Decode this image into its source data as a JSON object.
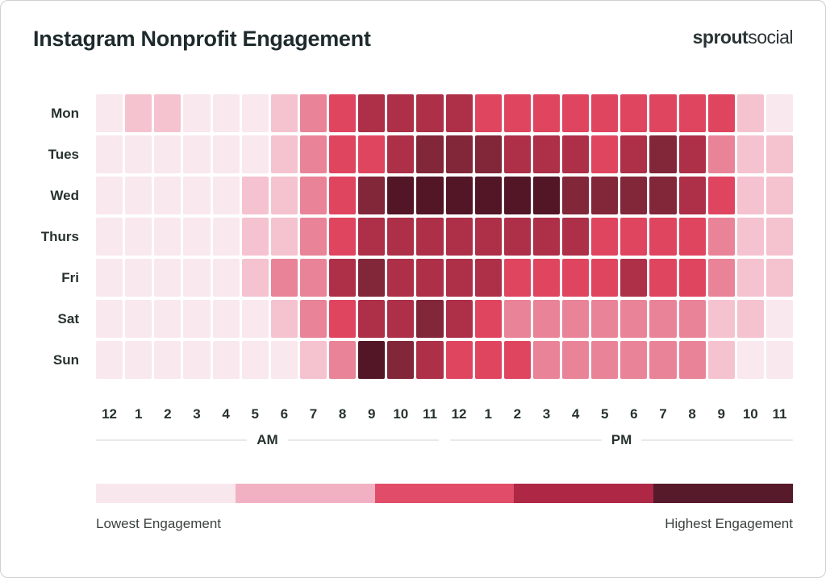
{
  "header": {
    "title": "Instagram Nonprofit Engagement",
    "logo": {
      "bold": "sprout",
      "light": "social"
    }
  },
  "axis": {
    "am_label": "AM",
    "pm_label": "PM"
  },
  "legend": {
    "lowest_label": "Lowest Engagement",
    "highest_label": "Highest Engagement",
    "colors": [
      "#f8e7ed",
      "#f2b1c2",
      "#e14d68",
      "#ae2745",
      "#571a2b"
    ]
  },
  "chart_data": {
    "type": "heatmap",
    "title": "Instagram Nonprofit Engagement",
    "x_labels": [
      "12",
      "1",
      "2",
      "3",
      "4",
      "5",
      "6",
      "7",
      "8",
      "9",
      "10",
      "11",
      "12",
      "1",
      "2",
      "3",
      "4",
      "5",
      "6",
      "7",
      "8",
      "9",
      "10",
      "11"
    ],
    "x_groups": [
      "AM",
      "PM"
    ],
    "y_labels": [
      "Mon",
      "Tues",
      "Wed",
      "Thurs",
      "Fri",
      "Sat",
      "Sun"
    ],
    "value_scale": "engagement level, 1 = lowest to 7 = highest",
    "palette": [
      "#f9e8ee",
      "#f5c2cf",
      "#e98398",
      "#e04560",
      "#ad2f48",
      "#822639",
      "#521627"
    ],
    "values": [
      [
        1,
        2,
        2,
        1,
        1,
        1,
        2,
        3,
        4,
        5,
        5,
        5,
        5,
        4,
        4,
        4,
        4,
        4,
        4,
        4,
        4,
        4,
        2,
        1
      ],
      [
        1,
        1,
        1,
        1,
        1,
        1,
        2,
        3,
        4,
        4,
        5,
        6,
        6,
        6,
        5,
        5,
        5,
        4,
        5,
        6,
        5,
        3,
        2,
        2
      ],
      [
        1,
        1,
        1,
        1,
        1,
        2,
        2,
        3,
        4,
        6,
        7,
        7,
        7,
        7,
        7,
        7,
        6,
        6,
        6,
        6,
        5,
        4,
        2,
        2
      ],
      [
        1,
        1,
        1,
        1,
        1,
        2,
        2,
        3,
        4,
        5,
        5,
        5,
        5,
        5,
        5,
        5,
        5,
        4,
        4,
        4,
        4,
        3,
        2,
        2
      ],
      [
        1,
        1,
        1,
        1,
        1,
        2,
        3,
        3,
        5,
        6,
        5,
        5,
        5,
        5,
        4,
        4,
        4,
        4,
        5,
        4,
        4,
        3,
        2,
        2
      ],
      [
        1,
        1,
        1,
        1,
        1,
        1,
        2,
        3,
        4,
        5,
        5,
        6,
        5,
        4,
        3,
        3,
        3,
        3,
        3,
        3,
        3,
        2,
        2,
        1
      ],
      [
        1,
        1,
        1,
        1,
        1,
        1,
        1,
        2,
        3,
        7,
        6,
        5,
        4,
        4,
        4,
        3,
        3,
        3,
        3,
        3,
        3,
        2,
        1,
        1
      ]
    ]
  }
}
